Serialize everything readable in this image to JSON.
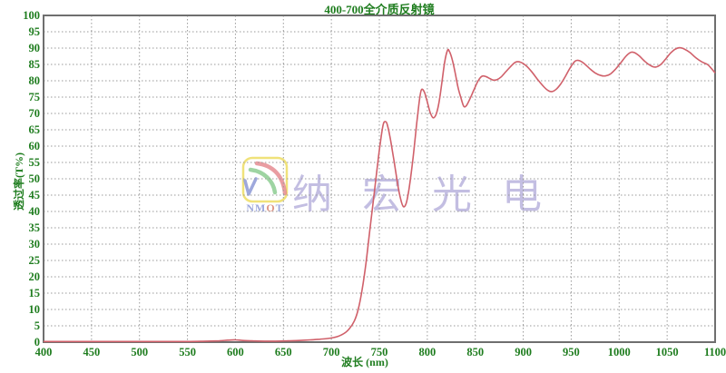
{
  "title": "400-700全介质反射镜",
  "watermark": {
    "cn_text": "纳 宏 光 电",
    "logo_text": "NMOT"
  },
  "colors": {
    "axis_text": "#1f7d1f",
    "grid": "#9a9a9a",
    "border": "#6f6f6f",
    "curve": "#d0606a",
    "watermark_text": "#b5aedb",
    "logo_border": "#f0e27a",
    "logo_green": "#86c98b",
    "logo_red": "#e4858b",
    "logo_blue": "#8d99d6",
    "logo_o_accent": "#d9826f"
  },
  "chart_data": {
    "type": "line",
    "title": "400-700全介质反射镜",
    "xlabel": "波长 (nm)",
    "ylabel": "透过率(T%)",
    "xlim": [
      400,
      1100
    ],
    "ylim": [
      0,
      100
    ],
    "x_tick_step": 50,
    "y_tick_step": 5,
    "grid": true,
    "legend": "none",
    "series": [
      {
        "name": "transmittance",
        "points": [
          [
            400,
            0.2
          ],
          [
            430,
            0.2
          ],
          [
            460,
            0.2
          ],
          [
            490,
            0.2
          ],
          [
            520,
            0.2
          ],
          [
            550,
            0.2
          ],
          [
            570,
            0.3
          ],
          [
            583,
            0.4
          ],
          [
            592,
            0.6
          ],
          [
            600,
            0.7
          ],
          [
            608,
            0.5
          ],
          [
            618,
            0.4
          ],
          [
            630,
            0.3
          ],
          [
            642,
            0.3
          ],
          [
            654,
            0.4
          ],
          [
            666,
            0.5
          ],
          [
            678,
            0.7
          ],
          [
            688,
            0.9
          ],
          [
            696,
            1.1
          ],
          [
            702,
            1.4
          ],
          [
            708,
            1.9
          ],
          [
            714,
            2.8
          ],
          [
            719,
            4.2
          ],
          [
            724,
            6.5
          ],
          [
            728,
            10
          ],
          [
            732,
            16
          ],
          [
            736,
            24
          ],
          [
            740,
            34
          ],
          [
            744,
            44
          ],
          [
            748,
            54
          ],
          [
            751,
            61
          ],
          [
            754,
            66.5
          ],
          [
            756,
            67.5
          ],
          [
            758,
            66.8
          ],
          [
            761,
            63
          ],
          [
            765,
            56
          ],
          [
            769,
            48.5
          ],
          [
            772,
            44
          ],
          [
            775,
            41.5
          ],
          [
            778,
            42.5
          ],
          [
            781,
            47
          ],
          [
            785,
            56
          ],
          [
            789,
            67
          ],
          [
            792,
            74.5
          ],
          [
            794,
            77.3
          ],
          [
            797,
            76.5
          ],
          [
            800,
            73.5
          ],
          [
            803,
            70.3
          ],
          [
            806,
            68.7
          ],
          [
            809,
            69.6
          ],
          [
            812,
            73
          ],
          [
            815,
            79
          ],
          [
            818,
            85.5
          ],
          [
            821,
            89.3
          ],
          [
            823,
            89
          ],
          [
            826,
            86.5
          ],
          [
            829,
            82.5
          ],
          [
            832,
            78
          ],
          [
            835,
            74.8
          ],
          [
            838,
            72.2
          ],
          [
            841,
            72.5
          ],
          [
            845,
            74.8
          ],
          [
            849,
            77.5
          ],
          [
            853,
            80
          ],
          [
            857,
            81.4
          ],
          [
            861,
            81.3
          ],
          [
            865,
            80.7
          ],
          [
            869,
            80.2
          ],
          [
            873,
            80.4
          ],
          [
            877,
            81.2
          ],
          [
            882,
            82.8
          ],
          [
            887,
            84.4
          ],
          [
            892,
            85.7
          ],
          [
            897,
            85.7
          ],
          [
            903,
            84.6
          ],
          [
            909,
            82.7
          ],
          [
            915,
            80.4
          ],
          [
            921,
            78.3
          ],
          [
            926,
            77
          ],
          [
            930,
            76.7
          ],
          [
            934,
            77.3
          ],
          [
            939,
            79
          ],
          [
            944,
            81.4
          ],
          [
            949,
            84
          ],
          [
            954,
            86
          ],
          [
            958,
            86.2
          ],
          [
            963,
            85.4
          ],
          [
            969,
            83.8
          ],
          [
            975,
            82.4
          ],
          [
            981,
            81.6
          ],
          [
            986,
            81.5
          ],
          [
            991,
            82.1
          ],
          [
            996,
            83.5
          ],
          [
            1002,
            85.6
          ],
          [
            1007,
            87.5
          ],
          [
            1012,
            88.7
          ],
          [
            1016,
            88.6
          ],
          [
            1021,
            87.6
          ],
          [
            1027,
            85.9
          ],
          [
            1033,
            84.6
          ],
          [
            1038,
            84.2
          ],
          [
            1043,
            84.9
          ],
          [
            1048,
            86.5
          ],
          [
            1053,
            88.3
          ],
          [
            1058,
            89.6
          ],
          [
            1063,
            90.1
          ],
          [
            1068,
            89.7
          ],
          [
            1074,
            88.6
          ],
          [
            1080,
            87
          ],
          [
            1086,
            85.8
          ],
          [
            1092,
            85
          ],
          [
            1096,
            83.8
          ],
          [
            1100,
            82.4
          ]
        ]
      }
    ]
  }
}
